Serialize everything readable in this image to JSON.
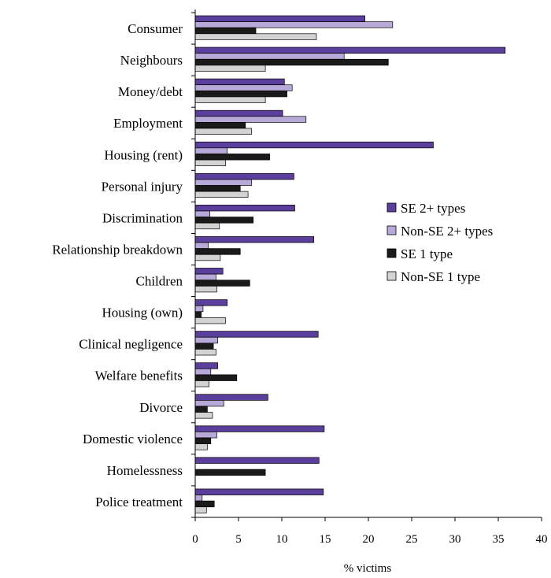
{
  "chart_data": {
    "type": "bar",
    "orientation": "horizontal",
    "categories": [
      "Consumer",
      "Neighbours",
      "Money/debt",
      "Employment",
      "Housing (rent)",
      "Personal injury",
      "Discrimination",
      "Relationship breakdown",
      "Children",
      "Housing (own)",
      "Clinical negligence",
      "Welfare benefits",
      "Divorce",
      "Domestic violence",
      "Homelessness",
      "Police treatment"
    ],
    "series": [
      {
        "name": "SE 2+ types",
        "color": "#5b3f9c",
        "values": [
          19.6,
          35.8,
          10.3,
          10.1,
          27.5,
          11.4,
          11.5,
          13.7,
          3.2,
          3.7,
          14.2,
          2.6,
          8.4,
          14.9,
          14.3,
          14.8
        ]
      },
      {
        "name": "Non-SE 2+ types",
        "color": "#b8a9d9",
        "values": [
          22.8,
          17.2,
          11.2,
          12.8,
          3.7,
          6.5,
          1.7,
          1.5,
          2.4,
          0.9,
          2.6,
          1.8,
          3.3,
          2.5,
          0.0,
          0.8
        ]
      },
      {
        "name": "SE 1 type",
        "color": "#1a1a1a",
        "values": [
          7.0,
          22.3,
          10.6,
          5.8,
          8.6,
          5.2,
          6.7,
          5.2,
          6.3,
          0.7,
          2.1,
          4.8,
          1.4,
          1.8,
          8.1,
          2.2
        ]
      },
      {
        "name": "Non-SE 1 type",
        "color": "#d3d3d3",
        "values": [
          14.0,
          8.1,
          8.1,
          6.5,
          3.5,
          6.1,
          2.8,
          2.9,
          2.5,
          3.5,
          2.4,
          1.6,
          2.0,
          1.4,
          0.0,
          1.3
        ]
      }
    ],
    "xlabel": "% victims",
    "ylabel": "",
    "xlim": [
      0,
      40
    ],
    "xticks": [
      "0",
      "5",
      "10",
      "15",
      "20",
      "25",
      "30",
      "35",
      "40"
    ],
    "grid": false,
    "legend_position": "right"
  }
}
